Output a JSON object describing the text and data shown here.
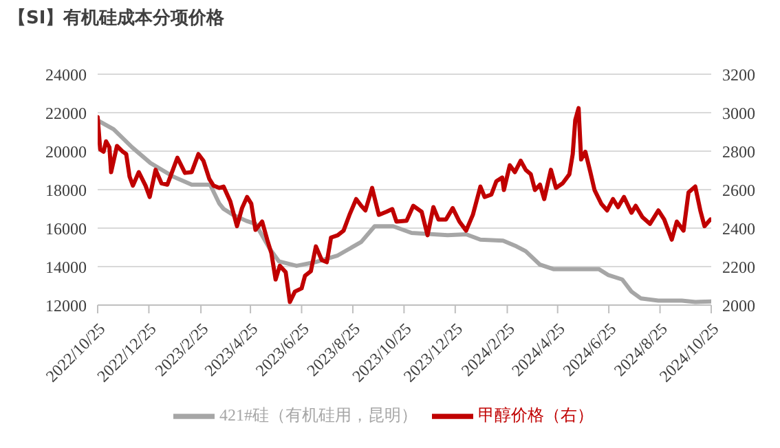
{
  "chart_data": {
    "type": "line",
    "title": "【SI】有机硅成本分项价格",
    "series": [
      {
        "name": "421#硅（有机硅用，昆明）",
        "color": "#a6a6a6",
        "axis": "y",
        "x": [
          "2022-10-25",
          "2022-11-13",
          "2022-12-05",
          "2022-12-27",
          "2023-01-23",
          "2023-02-14",
          "2023-03-08",
          "2023-03-19",
          "2023-03-24",
          "2023-04-04",
          "2023-04-20",
          "2023-05-01",
          "2023-05-18",
          "2023-05-29",
          "2023-06-19",
          "2023-07-11",
          "2023-08-07",
          "2023-09-04",
          "2023-09-20",
          "2023-10-12",
          "2023-11-03",
          "2023-12-16",
          "2024-01-07",
          "2024-01-24",
          "2024-02-20",
          "2024-03-07",
          "2024-03-18",
          "2024-04-04",
          "2024-04-20",
          "2024-05-17",
          "2024-06-13",
          "2024-06-24",
          "2024-07-11",
          "2024-07-22",
          "2024-08-02",
          "2024-08-23",
          "2024-09-20",
          "2024-10-06",
          "2024-10-25"
        ],
        "values": [
          21600,
          21140,
          20200,
          19380,
          18680,
          18260,
          18260,
          17270,
          17000,
          16700,
          16380,
          16220,
          14930,
          14270,
          14040,
          14230,
          14580,
          15280,
          16100,
          16100,
          15750,
          15630,
          15680,
          15400,
          15350,
          15050,
          14800,
          14100,
          13870,
          13870,
          13870,
          13570,
          13330,
          12700,
          12350,
          12230,
          12230,
          12160,
          12190
        ]
      },
      {
        "name": "甲醇价格（右）",
        "color": "#c00000",
        "axis": "y2",
        "x": [
          "2022-10-25",
          "2022-10-28",
          "2022-11-01",
          "2022-11-04",
          "2022-11-08",
          "2022-11-10",
          "2022-11-17",
          "2022-11-24",
          "2022-11-28",
          "2022-12-02",
          "2022-12-06",
          "2022-12-13",
          "2022-12-21",
          "2022-12-26",
          "2023-01-02",
          "2023-01-09",
          "2023-01-16",
          "2023-01-28",
          "2023-02-06",
          "2023-02-14",
          "2023-02-22",
          "2023-02-28",
          "2023-03-07",
          "2023-03-12",
          "2023-03-19",
          "2023-03-24",
          "2023-04-01",
          "2023-04-09",
          "2023-04-15",
          "2023-04-21",
          "2023-04-26",
          "2023-05-01",
          "2023-05-09",
          "2023-05-15",
          "2023-05-20",
          "2023-05-25",
          "2023-05-30",
          "2023-06-06",
          "2023-06-11",
          "2023-06-17",
          "2023-06-25",
          "2023-06-29",
          "2023-07-06",
          "2023-07-12",
          "2023-07-19",
          "2023-07-25",
          "2023-07-30",
          "2023-08-07",
          "2023-08-14",
          "2023-08-21",
          "2023-08-29",
          "2023-09-04",
          "2023-09-09",
          "2023-09-17",
          "2023-09-25",
          "2023-10-04",
          "2023-10-11",
          "2023-10-16",
          "2023-10-28",
          "2023-11-05",
          "2023-11-15",
          "2023-11-22",
          "2023-11-29",
          "2023-12-05",
          "2023-12-14",
          "2023-12-22",
          "2023-12-30",
          "2024-01-07",
          "2024-01-15",
          "2024-01-24",
          "2024-01-29",
          "2024-02-06",
          "2024-02-12",
          "2024-02-19",
          "2024-02-21",
          "2024-02-28",
          "2024-03-05",
          "2024-03-12",
          "2024-03-18",
          "2024-03-24",
          "2024-03-29",
          "2024-04-04",
          "2024-04-09",
          "2024-04-17",
          "2024-04-23",
          "2024-05-01",
          "2024-05-09",
          "2024-05-13",
          "2024-05-16",
          "2024-05-20",
          "2024-05-23",
          "2024-05-28",
          "2024-06-03",
          "2024-06-08",
          "2024-06-16",
          "2024-06-23",
          "2024-06-30",
          "2024-07-06",
          "2024-07-13",
          "2024-07-22",
          "2024-07-27",
          "2024-08-04",
          "2024-08-13",
          "2024-08-23",
          "2024-08-30",
          "2024-09-08",
          "2024-09-14",
          "2024-09-22",
          "2024-09-28",
          "2024-10-06",
          "2024-10-12",
          "2024-10-17",
          "2024-10-24"
        ],
        "values": [
          2977,
          2809,
          2797,
          2851,
          2820,
          2691,
          2827,
          2797,
          2785,
          2668,
          2621,
          2691,
          2621,
          2562,
          2703,
          2633,
          2626,
          2766,
          2687,
          2691,
          2785,
          2750,
          2656,
          2621,
          2609,
          2616,
          2539,
          2410,
          2504,
          2562,
          2527,
          2391,
          2434,
          2340,
          2269,
          2133,
          2204,
          2171,
          2016,
          2070,
          2087,
          2152,
          2176,
          2305,
          2234,
          2223,
          2351,
          2363,
          2387,
          2469,
          2551,
          2516,
          2492,
          2609,
          2469,
          2485,
          2499,
          2434,
          2438,
          2516,
          2485,
          2363,
          2509,
          2445,
          2445,
          2504,
          2434,
          2387,
          2469,
          2616,
          2562,
          2574,
          2644,
          2663,
          2598,
          2727,
          2691,
          2750,
          2703,
          2680,
          2598,
          2626,
          2551,
          2703,
          2609,
          2633,
          2680,
          2785,
          2961,
          3024,
          2757,
          2797,
          2691,
          2598,
          2527,
          2492,
          2551,
          2509,
          2562,
          2480,
          2516,
          2457,
          2422,
          2492,
          2445,
          2340,
          2434,
          2387,
          2586,
          2616,
          2492,
          2410,
          2445
        ]
      }
    ],
    "xlim": [
      "2022-10-25",
      "2024-10-25"
    ],
    "xticks": [
      {
        "value": "2022-10-25",
        "label": "2022/10/25"
      },
      {
        "value": "2022-12-25",
        "label": "2022/12/25"
      },
      {
        "value": "2023-02-25",
        "label": "2023/2/25"
      },
      {
        "value": "2023-04-25",
        "label": "2023/4/25"
      },
      {
        "value": "2023-06-25",
        "label": "2023/6/25"
      },
      {
        "value": "2023-08-25",
        "label": "2023/8/25"
      },
      {
        "value": "2023-10-25",
        "label": "2023/10/25"
      },
      {
        "value": "2023-12-25",
        "label": "2023/12/25"
      },
      {
        "value": "2024-02-25",
        "label": "2024/2/25"
      },
      {
        "value": "2024-04-25",
        "label": "2024/4/25"
      },
      {
        "value": "2024-06-25",
        "label": "2024/6/25"
      },
      {
        "value": "2024-08-25",
        "label": "2024/8/25"
      },
      {
        "value": "2024-10-25",
        "label": "2024/10/25"
      }
    ],
    "ylim": [
      12000,
      24000
    ],
    "yticks": [
      12000,
      14000,
      16000,
      18000,
      20000,
      22000,
      24000
    ],
    "y2lim": [
      2000,
      3200
    ],
    "y2ticks": [
      2000,
      2200,
      2400,
      2600,
      2800,
      3000,
      3200
    ],
    "grid": "y",
    "legend": "bottom",
    "marker": "none",
    "line_style": "solid"
  }
}
